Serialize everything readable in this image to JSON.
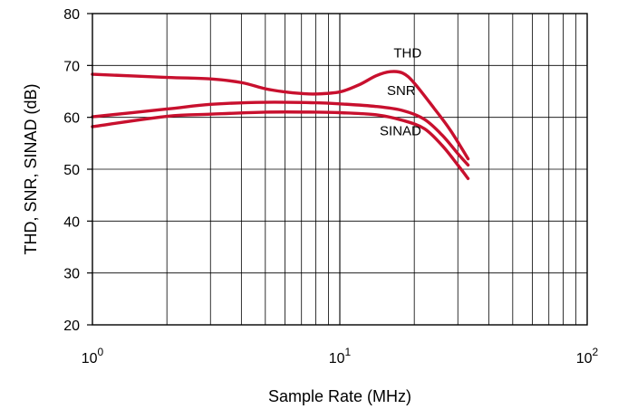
{
  "chart_data": {
    "type": "line",
    "title": "",
    "xlabel": "Sample Rate (MHz)",
    "ylabel": "THD, SNR, SINAD (dB)",
    "x_scale": "log",
    "xlim": [
      1,
      100
    ],
    "ylim": [
      20,
      80
    ],
    "y_ticks": [
      20,
      30,
      40,
      50,
      60,
      70,
      80
    ],
    "x_ticks": [
      {
        "value": 1,
        "base": "10",
        "exp": "0"
      },
      {
        "value": 10,
        "base": "10",
        "exp": "1"
      },
      {
        "value": 100,
        "base": "10",
        "exp": "2"
      }
    ],
    "grid": true,
    "line_color": "#c8102e",
    "series": [
      {
        "name": "THD",
        "x": [
          1,
          2,
          3,
          4,
          5,
          6,
          7,
          8,
          10,
          12,
          14,
          16,
          18,
          20,
          24,
          28,
          33
        ],
        "y": [
          68.3,
          67.7,
          67.4,
          66.7,
          65.5,
          64.9,
          64.6,
          64.5,
          64.9,
          66.3,
          68.0,
          68.8,
          68.5,
          66.6,
          61.8,
          57.5,
          52.0
        ]
      },
      {
        "name": "SNR",
        "x": [
          1,
          2,
          3,
          5,
          8,
          10,
          14,
          18,
          22,
          26,
          30,
          33
        ],
        "y": [
          60.1,
          61.6,
          62.5,
          62.9,
          62.8,
          62.6,
          62.1,
          61.3,
          59.6,
          56.5,
          53.0,
          50.8
        ]
      },
      {
        "name": "SINAD",
        "x": [
          1,
          2,
          3,
          5,
          8,
          10,
          14,
          18,
          22,
          26,
          30,
          33
        ],
        "y": [
          58.2,
          60.2,
          60.6,
          61.0,
          61.0,
          60.9,
          60.5,
          59.4,
          57.8,
          54.5,
          50.8,
          48.2
        ]
      }
    ],
    "annotations": [
      {
        "text": "THD",
        "x": 16.5,
        "y": 71.5
      },
      {
        "text": "SNR",
        "x": 15.5,
        "y": 64.3
      },
      {
        "text": "SINAD",
        "x": 14.5,
        "y": 56.5
      }
    ]
  }
}
